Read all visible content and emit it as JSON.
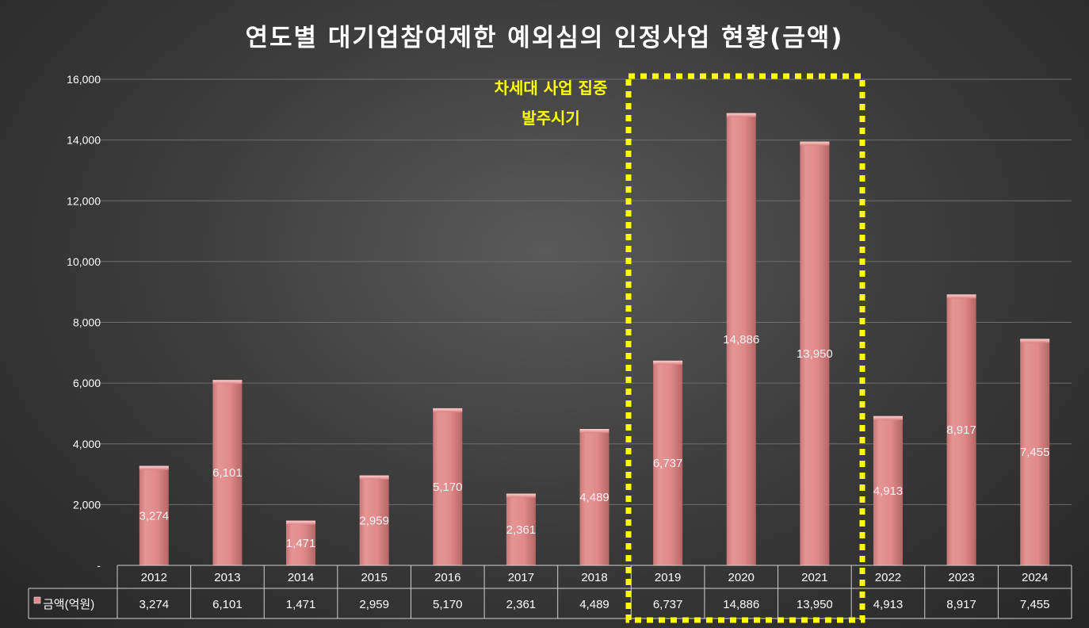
{
  "chart_data": {
    "type": "bar",
    "title": "연도별 대기업참여제한 예외심의 인정사업 현황(금액)",
    "categories": [
      "2012",
      "2013",
      "2014",
      "2015",
      "2016",
      "2017",
      "2018",
      "2019",
      "2020",
      "2021",
      "2022",
      "2023",
      "2024"
    ],
    "series": [
      {
        "name": "금액(억원)",
        "values": [
          3274,
          6101,
          1471,
          2959,
          5170,
          2361,
          4489,
          6737,
          14886,
          13950,
          4913,
          8917,
          7455
        ],
        "labels": [
          "3,274",
          "6,101",
          "1,471",
          "2,959",
          "5,170",
          "2,361",
          "4,489",
          "6,737",
          "14,886",
          "13,950",
          "4,913",
          "8,917",
          "7,455"
        ]
      }
    ],
    "ylim": [
      0,
      16000
    ],
    "y_ticks": [
      0,
      2000,
      4000,
      6000,
      8000,
      10000,
      12000,
      14000,
      16000
    ],
    "y_tick_labels": [
      "-",
      "2,000",
      "4,000",
      "6,000",
      "8,000",
      "10,000",
      "12,000",
      "14,000",
      "16,000"
    ],
    "grid": true,
    "legend_placement": "bottom data table",
    "annotation": {
      "lines": [
        "차세대 사업 집중",
        "발주시기"
      ],
      "highlight_categories": [
        "2019",
        "2020",
        "2021"
      ],
      "color": "#ffff00"
    },
    "bar_color": "#e08a8a"
  }
}
